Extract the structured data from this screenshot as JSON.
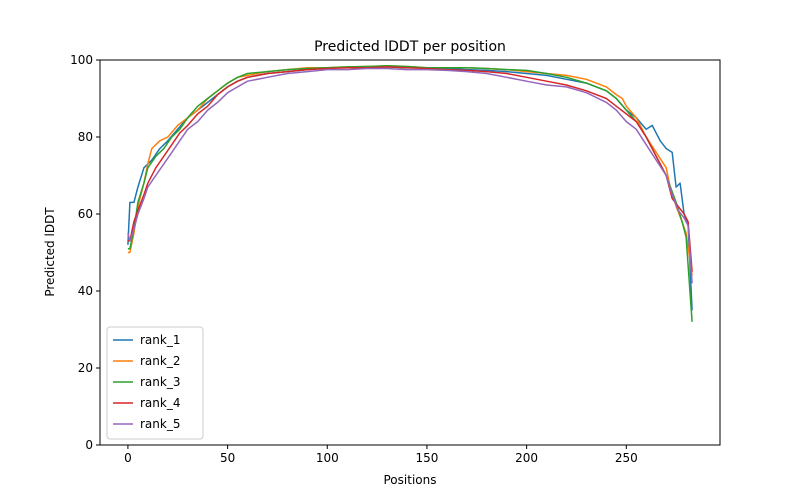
{
  "chart_data": {
    "type": "line",
    "title": "Predicted lDDT per position",
    "xlabel": "Positions",
    "ylabel": "Predicted lDDT",
    "xlim": [
      -14,
      297
    ],
    "ylim": [
      0,
      100
    ],
    "xticks": [
      0,
      50,
      100,
      150,
      200,
      250
    ],
    "yticks": [
      0,
      20,
      40,
      60,
      80,
      100
    ],
    "grid": false,
    "legend_position": "lower-left",
    "series": [
      {
        "name": "rank_1",
        "color": "#1f77b4",
        "points": [
          [
            0,
            52
          ],
          [
            1,
            63
          ],
          [
            3,
            63
          ],
          [
            5,
            67
          ],
          [
            8,
            72
          ],
          [
            12,
            74
          ],
          [
            16,
            77
          ],
          [
            20,
            79
          ],
          [
            25,
            82
          ],
          [
            30,
            85
          ],
          [
            35,
            87
          ],
          [
            40,
            89
          ],
          [
            45,
            91
          ],
          [
            50,
            93
          ],
          [
            55,
            94.5
          ],
          [
            60,
            95.5
          ],
          [
            70,
            96.5
          ],
          [
            80,
            97
          ],
          [
            90,
            97.5
          ],
          [
            100,
            98
          ],
          [
            110,
            98
          ],
          [
            120,
            98
          ],
          [
            130,
            98.2
          ],
          [
            140,
            98
          ],
          [
            150,
            98
          ],
          [
            160,
            97.8
          ],
          [
            170,
            97.5
          ],
          [
            180,
            97.3
          ],
          [
            190,
            97
          ],
          [
            200,
            96.5
          ],
          [
            210,
            96
          ],
          [
            220,
            95
          ],
          [
            230,
            94
          ],
          [
            240,
            92
          ],
          [
            245,
            90
          ],
          [
            250,
            87
          ],
          [
            255,
            85
          ],
          [
            260,
            82
          ],
          [
            263,
            83
          ],
          [
            267,
            79
          ],
          [
            270,
            77
          ],
          [
            273,
            76
          ],
          [
            275,
            67
          ],
          [
            277,
            68
          ],
          [
            279,
            60
          ],
          [
            281,
            57
          ],
          [
            283,
            35
          ]
        ]
      },
      {
        "name": "rank_2",
        "color": "#ff7f0e",
        "points": [
          [
            0,
            50
          ],
          [
            1,
            50
          ],
          [
            3,
            55
          ],
          [
            5,
            62
          ],
          [
            8,
            68
          ],
          [
            10,
            73
          ],
          [
            12,
            77
          ],
          [
            16,
            79
          ],
          [
            20,
            80
          ],
          [
            25,
            83
          ],
          [
            30,
            85
          ],
          [
            35,
            87
          ],
          [
            40,
            90
          ],
          [
            45,
            92
          ],
          [
            50,
            94
          ],
          [
            55,
            95.5
          ],
          [
            60,
            96
          ],
          [
            70,
            97
          ],
          [
            80,
            97.5
          ],
          [
            90,
            98
          ],
          [
            100,
            98
          ],
          [
            110,
            98.2
          ],
          [
            120,
            98.3
          ],
          [
            130,
            98.5
          ],
          [
            140,
            98.3
          ],
          [
            150,
            98
          ],
          [
            160,
            98
          ],
          [
            170,
            98
          ],
          [
            180,
            97.8
          ],
          [
            190,
            97.5
          ],
          [
            200,
            97
          ],
          [
            210,
            96.5
          ],
          [
            220,
            96
          ],
          [
            230,
            95
          ],
          [
            240,
            93
          ],
          [
            245,
            91
          ],
          [
            248,
            90
          ],
          [
            250,
            88
          ],
          [
            255,
            85
          ],
          [
            260,
            80
          ],
          [
            265,
            76
          ],
          [
            270,
            72
          ],
          [
            272,
            67
          ],
          [
            275,
            62
          ],
          [
            278,
            58
          ],
          [
            280,
            55
          ],
          [
            283,
            44
          ]
        ]
      },
      {
        "name": "rank_3",
        "color": "#2ca02c",
        "points": [
          [
            0,
            51
          ],
          [
            1,
            51
          ],
          [
            3,
            56
          ],
          [
            5,
            63
          ],
          [
            8,
            68
          ],
          [
            10,
            72
          ],
          [
            14,
            75
          ],
          [
            18,
            77
          ],
          [
            22,
            80
          ],
          [
            26,
            82
          ],
          [
            30,
            85
          ],
          [
            35,
            88
          ],
          [
            40,
            90
          ],
          [
            45,
            92
          ],
          [
            50,
            94
          ],
          [
            55,
            95.5
          ],
          [
            60,
            96.5
          ],
          [
            70,
            97
          ],
          [
            80,
            97.5
          ],
          [
            90,
            97.8
          ],
          [
            100,
            98
          ],
          [
            110,
            98.2
          ],
          [
            120,
            98.3
          ],
          [
            130,
            98.5
          ],
          [
            140,
            98.3
          ],
          [
            150,
            98
          ],
          [
            160,
            98
          ],
          [
            170,
            98
          ],
          [
            180,
            97.8
          ],
          [
            190,
            97.5
          ],
          [
            200,
            97.3
          ],
          [
            210,
            96.5
          ],
          [
            220,
            95.5
          ],
          [
            230,
            94
          ],
          [
            240,
            92
          ],
          [
            245,
            90
          ],
          [
            250,
            87
          ],
          [
            255,
            84
          ],
          [
            260,
            80
          ],
          [
            265,
            75
          ],
          [
            270,
            70
          ],
          [
            275,
            63
          ],
          [
            278,
            58
          ],
          [
            280,
            54
          ],
          [
            283,
            32
          ]
        ]
      },
      {
        "name": "rank_4",
        "color": "#d62728",
        "points": [
          [
            0,
            53
          ],
          [
            1,
            53
          ],
          [
            3,
            58
          ],
          [
            5,
            61
          ],
          [
            8,
            65
          ],
          [
            10,
            68
          ],
          [
            14,
            72
          ],
          [
            18,
            75
          ],
          [
            22,
            78
          ],
          [
            26,
            81
          ],
          [
            30,
            83
          ],
          [
            35,
            86
          ],
          [
            40,
            88
          ],
          [
            45,
            91
          ],
          [
            50,
            93
          ],
          [
            55,
            94.5
          ],
          [
            60,
            95.5
          ],
          [
            70,
            96.5
          ],
          [
            80,
            97
          ],
          [
            90,
            97.5
          ],
          [
            100,
            97.8
          ],
          [
            110,
            98
          ],
          [
            120,
            98
          ],
          [
            130,
            98.2
          ],
          [
            140,
            98
          ],
          [
            150,
            97.8
          ],
          [
            160,
            97.5
          ],
          [
            170,
            97.3
          ],
          [
            180,
            97
          ],
          [
            190,
            96.5
          ],
          [
            200,
            95.5
          ],
          [
            210,
            94.5
          ],
          [
            220,
            93.5
          ],
          [
            230,
            92
          ],
          [
            240,
            90
          ],
          [
            245,
            88
          ],
          [
            250,
            86
          ],
          [
            255,
            84
          ],
          [
            260,
            80
          ],
          [
            265,
            75
          ],
          [
            270,
            70
          ],
          [
            273,
            64
          ],
          [
            276,
            62
          ],
          [
            279,
            60
          ],
          [
            281,
            58
          ],
          [
            283,
            45
          ]
        ]
      },
      {
        "name": "rank_5",
        "color": "#9467bd",
        "points": [
          [
            0,
            55
          ],
          [
            1,
            53
          ],
          [
            3,
            56
          ],
          [
            5,
            60
          ],
          [
            8,
            64
          ],
          [
            10,
            67
          ],
          [
            14,
            70
          ],
          [
            18,
            73
          ],
          [
            22,
            76
          ],
          [
            26,
            79
          ],
          [
            30,
            82
          ],
          [
            35,
            84
          ],
          [
            40,
            87
          ],
          [
            45,
            89
          ],
          [
            50,
            91.5
          ],
          [
            55,
            93
          ],
          [
            60,
            94.5
          ],
          [
            70,
            95.5
          ],
          [
            80,
            96.5
          ],
          [
            90,
            97
          ],
          [
            100,
            97.5
          ],
          [
            110,
            97.5
          ],
          [
            120,
            97.8
          ],
          [
            130,
            97.8
          ],
          [
            140,
            97.5
          ],
          [
            150,
            97.5
          ],
          [
            160,
            97.3
          ],
          [
            170,
            97
          ],
          [
            180,
            96.5
          ],
          [
            190,
            95.5
          ],
          [
            200,
            94.5
          ],
          [
            210,
            93.5
          ],
          [
            220,
            93
          ],
          [
            230,
            91.5
          ],
          [
            240,
            89
          ],
          [
            245,
            87
          ],
          [
            250,
            84
          ],
          [
            255,
            82
          ],
          [
            260,
            78
          ],
          [
            265,
            74
          ],
          [
            270,
            70
          ],
          [
            273,
            65
          ],
          [
            276,
            61
          ],
          [
            279,
            59
          ],
          [
            281,
            57
          ],
          [
            283,
            42
          ]
        ]
      }
    ]
  }
}
